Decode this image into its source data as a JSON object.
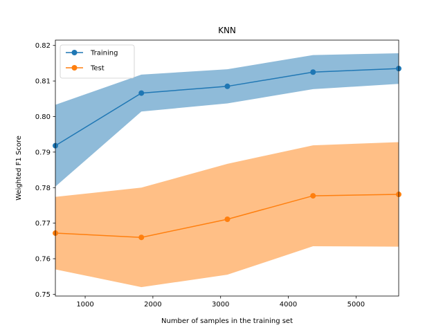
{
  "chart_data": {
    "type": "line",
    "title": "KNN",
    "xlabel": "Number of samples in the training set",
    "ylabel": "Weighted F1 Score",
    "xlim": [
      560,
      5630
    ],
    "ylim": [
      0.7495,
      0.8215
    ],
    "xticks": [
      1000,
      2000,
      3000,
      4000,
      5000
    ],
    "xtick_labels": [
      "1000",
      "2000",
      "3000",
      "4000",
      "5000"
    ],
    "yticks": [
      0.75,
      0.76,
      0.77,
      0.78,
      0.79,
      0.8,
      0.81,
      0.82
    ],
    "ytick_labels": [
      "0.75",
      "0.76",
      "0.77",
      "0.78",
      "0.79",
      "0.80",
      "0.81",
      "0.82"
    ],
    "grid": false,
    "legend_position": "top-left",
    "x": [
      560,
      1830,
      3100,
      4365,
      5630
    ],
    "series": [
      {
        "name": "Training",
        "color": "#1f77b4",
        "band_color": "#1f77b4",
        "values": [
          0.7918,
          0.8066,
          0.8085,
          0.8125,
          0.8135
        ],
        "upper": [
          0.8033,
          0.8118,
          0.8133,
          0.8173,
          0.8178
        ],
        "lower": [
          0.7803,
          0.8014,
          0.8037,
          0.8077,
          0.8092
        ]
      },
      {
        "name": "Test",
        "color": "#ff7f0e",
        "band_color": "#ff7f0e",
        "values": [
          0.7672,
          0.766,
          0.7711,
          0.7777,
          0.7781
        ],
        "upper": [
          0.7774,
          0.78,
          0.7867,
          0.7919,
          0.7928
        ],
        "lower": [
          0.757,
          0.752,
          0.7555,
          0.7635,
          0.7634
        ]
      }
    ]
  }
}
